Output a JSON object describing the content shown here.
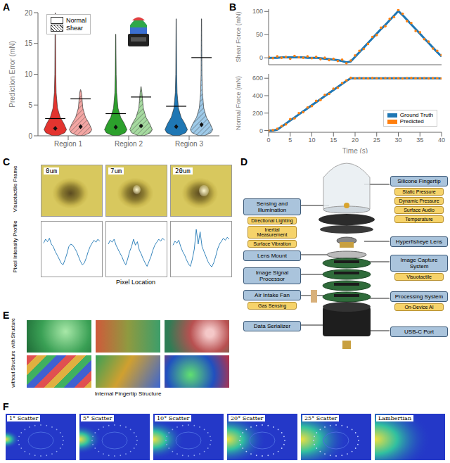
{
  "panel_labels": [
    "A",
    "B",
    "C",
    "D",
    "E",
    "F"
  ],
  "chart_data": [
    {
      "type": "violin",
      "categories": [
        "Region 1",
        "Region 2",
        "Region 3"
      ],
      "y_label": "Prediction Error (mN)",
      "ylim": [
        0,
        20
      ],
      "yticks": [
        0,
        5,
        10,
        15,
        20
      ],
      "legend": "upper left",
      "series": [
        {
          "name": "Normal",
          "colors": [
            "#e3342f",
            "#2ca02c",
            "#1f77b4"
          ],
          "max": [
            20,
            16.5,
            19
          ],
          "mean": [
            2.8,
            3.6,
            4.8
          ],
          "median": [
            1.2,
            1.4,
            1.5
          ]
        },
        {
          "name": "Shear",
          "colors": [
            "#f4a6a3",
            "#a6dba0",
            "#9ecae9"
          ],
          "max": [
            7.5,
            8,
            19
          ],
          "mean": [
            6,
            6.3,
            12.7
          ],
          "median": [
            1.5,
            1.6,
            1.8
          ]
        }
      ]
    },
    {
      "type": "line",
      "y_label": "Shear Force (mN)",
      "xlim": [
        0,
        40
      ],
      "xticks": [
        0,
        5,
        10,
        15,
        20,
        25,
        30,
        35,
        40
      ],
      "ylim": [
        -15,
        105
      ],
      "yticks": [
        0,
        50,
        100
      ],
      "tick_labels": "y",
      "x": [
        0,
        1,
        2,
        3,
        4,
        5,
        6,
        7,
        8,
        9,
        10,
        11,
        12,
        13,
        14,
        15,
        16,
        17,
        18,
        19,
        20,
        21,
        22,
        23,
        24,
        25,
        26,
        27,
        28,
        29,
        30,
        31,
        32,
        33,
        34,
        35,
        36,
        37,
        38,
        39,
        40
      ],
      "series": [
        {
          "name": "Ground Truth",
          "color": "#1f77b4",
          "line_style": "solid",
          "marker": "none",
          "values": [
            0,
            0,
            0,
            1,
            1,
            1,
            1,
            1,
            1,
            0,
            0,
            0,
            -1,
            -2,
            -3,
            -4,
            -5,
            -7,
            -10,
            -8,
            2,
            12,
            22,
            32,
            42,
            52,
            62,
            71,
            81,
            91,
            101,
            92,
            82,
            72,
            62,
            52,
            42,
            32,
            22,
            12,
            3
          ]
        },
        {
          "name": "Predicted",
          "color": "#ff7f0e",
          "line_style": "none",
          "marker": "o",
          "values": [
            2,
            -1,
            3,
            0,
            2,
            -2,
            4,
            1,
            0,
            3,
            -1,
            2,
            -3,
            0,
            -5,
            -2,
            -7,
            -4,
            -12,
            -6,
            5,
            15,
            19,
            30,
            45,
            49,
            65,
            68,
            84,
            88,
            103,
            95,
            79,
            75,
            58,
            55,
            40,
            35,
            20,
            15,
            6
          ]
        }
      ]
    },
    {
      "type": "line",
      "y_label": "Normal Force (mN)",
      "x_label": "Time (s)",
      "xlim": [
        0,
        40
      ],
      "xticks": [
        0,
        5,
        10,
        15,
        20,
        25,
        30,
        35,
        40
      ],
      "ylim": [
        -20,
        650
      ],
      "yticks": [
        0,
        200,
        400,
        600
      ],
      "legend": "lower right",
      "x": [
        0,
        1,
        2,
        3,
        4,
        5,
        6,
        7,
        8,
        9,
        10,
        11,
        12,
        13,
        14,
        15,
        16,
        17,
        18,
        19,
        20,
        21,
        22,
        23,
        24,
        25,
        26,
        27,
        28,
        29,
        30,
        31,
        32,
        33,
        34,
        35,
        36,
        37,
        38,
        39,
        40
      ],
      "series": [
        {
          "name": "Ground Truth",
          "color": "#1f77b4",
          "line_style": "solid",
          "marker": "none",
          "values": [
            0,
            0,
            10,
            45,
            80,
            115,
            150,
            185,
            220,
            255,
            290,
            325,
            360,
            395,
            430,
            465,
            500,
            535,
            570,
            600,
            600,
            600,
            600,
            600,
            600,
            600,
            600,
            600,
            600,
            600,
            600,
            600,
            600,
            600,
            600,
            600,
            600,
            600,
            600,
            600,
            598
          ]
        },
        {
          "name": "Predicted",
          "color": "#ff7f0e",
          "line_style": "none",
          "marker": "o",
          "values": [
            0,
            5,
            20,
            50,
            70,
            130,
            140,
            200,
            210,
            265,
            280,
            340,
            350,
            410,
            420,
            480,
            490,
            545,
            575,
            605,
            598,
            602,
            600,
            597,
            603,
            600,
            598,
            601,
            599,
            602,
            600,
            597,
            601,
            603,
            599,
            600,
            602,
            598,
            601,
            599,
            597
          ]
        }
      ]
    },
    {
      "type": "line",
      "x_label": "Pixel Location",
      "tick_labels": false,
      "ylim": [
        0,
        100
      ],
      "series": [
        {
          "color": "#1f77b4",
          "values": [
            62,
            70,
            65,
            72,
            60,
            55,
            45,
            38,
            30,
            22,
            18,
            28,
            40,
            55,
            60,
            58,
            52,
            45,
            35,
            25,
            18,
            22,
            32,
            45,
            55,
            62,
            68,
            64,
            70,
            66
          ]
        },
        {
          "color": "#1f77b4",
          "values": [
            60,
            68,
            64,
            70,
            58,
            50,
            42,
            35,
            25,
            18,
            30,
            45,
            55,
            70,
            58,
            65,
            48,
            40,
            30,
            22,
            15,
            25,
            35,
            48,
            58,
            64,
            70,
            66,
            72,
            68
          ]
        },
        {
          "color": "#1f77b4",
          "values": [
            58,
            66,
            62,
            68,
            55,
            45,
            38,
            28,
            20,
            15,
            30,
            50,
            90,
            60,
            85,
            55,
            45,
            35,
            25,
            18,
            14,
            22,
            35,
            50,
            60,
            66,
            72,
            68,
            74,
            70
          ]
        }
      ]
    }
  ],
  "panel_C": {
    "frame_labels": [
      "0um",
      "7um",
      "20um"
    ],
    "row_labels": [
      "Visuotactile Frame",
      "Pixel Intensity Profile"
    ]
  },
  "panel_D": {
    "components": [
      {
        "label": "Silicone Fingertip",
        "features": [
          "Static Pressure",
          "Dynamic Pressure",
          "Surface Audio",
          "Temperature"
        ]
      },
      {
        "label": "Sensing and Illumination",
        "features": [
          "Directional Lighting",
          "Inertial Measurement",
          "Surface Vibration"
        ]
      },
      {
        "label": "Hyperfisheye Lens"
      },
      {
        "label": "Lens Mount"
      },
      {
        "label": "Image Capture System",
        "features": [
          "Visuotactile"
        ]
      },
      {
        "label": "Image Signal Processor"
      },
      {
        "label": "Air Intake Fan",
        "features": [
          "Gas Sensing"
        ]
      },
      {
        "label": "Processing System",
        "features": [
          "On-Device AI"
        ]
      },
      {
        "label": "Data Serializer"
      },
      {
        "label": "USB-C Port"
      }
    ]
  },
  "panel_E": {
    "row_labels": [
      "with Structure",
      "without Structure"
    ],
    "x_label": "Internal Fingertip Structure"
  },
  "panel_F": {
    "image_labels": [
      "1° Scatter",
      "5° Scatter",
      "10° Scatter",
      "20° Scatter",
      "25° Scatter",
      "Lambertian"
    ]
  }
}
